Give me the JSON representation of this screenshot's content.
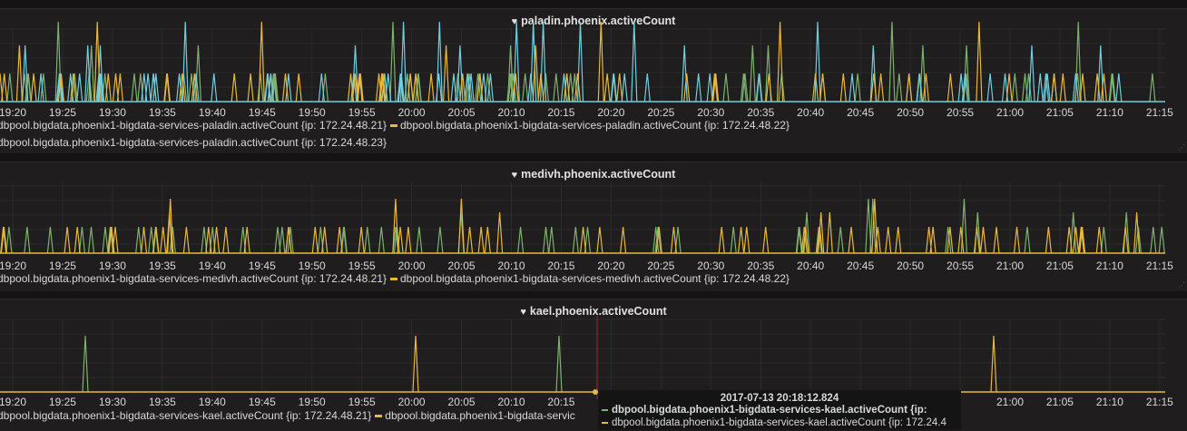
{
  "colors": {
    "green": "#7eb26d",
    "yellow": "#eab839",
    "blue": "#6ed0e0",
    "grid": "#2c2c2c",
    "crosshair": "#a0282a"
  },
  "time_labels": [
    "19:20",
    "19:25",
    "19:30",
    "19:35",
    "19:40",
    "19:45",
    "19:50",
    "19:55",
    "20:00",
    "20:05",
    "20:10",
    "20:15",
    "20:20",
    "20:25",
    "20:30",
    "20:35",
    "20:40",
    "20:45",
    "20:50",
    "20:55",
    "21:00",
    "21:05",
    "21:10",
    "21:15"
  ],
  "panels": [
    {
      "title": "paladin.phoenix.activeCount",
      "legend_rows": [
        [
          {
            "color": "#7eb26d",
            "label": "dbpool.bigdata.phoenix1-bigdata-services-paladin.activeCount {ip: 172.24.48.21}"
          },
          {
            "color": "#eab839",
            "label": "dbpool.bigdata.phoenix1-bigdata-services-paladin.activeCount {ip: 172.24.48.22}"
          }
        ],
        [
          {
            "color": "#6ed0e0",
            "label": "dbpool.bigdata.phoenix1-bigdata-services-paladin.activeCount {ip: 172.24.48.23}"
          }
        ]
      ]
    },
    {
      "title": "medivh.phoenix.activeCount",
      "legend_rows": [
        [
          {
            "color": "#7eb26d",
            "label": "dbpool.bigdata.phoenix1-bigdata-services-medivh.activeCount {ip: 172.24.48.21}"
          },
          {
            "color": "#eab839",
            "label": "dbpool.bigdata.phoenix1-bigdata-services-medivh.activeCount {ip: 172.24.48.22}"
          }
        ]
      ]
    },
    {
      "title": "kael.phoenix.activeCount",
      "legend_rows": [
        [
          {
            "color": "#7eb26d",
            "label": "dbpool.bigdata.phoenix1-bigdata-services-kael.activeCount {ip: 172.24.48.21}"
          },
          {
            "color": "#eab839",
            "label": "dbpool.bigdata.phoenix1-bigdata-servic"
          }
        ]
      ]
    }
  ],
  "tooltip": {
    "time": "2017-07-13 20:18:12.824",
    "items": [
      {
        "color": "#7eb26d",
        "label": "dbpool.bigdata.phoenix1-bigdata-services-kael.activeCount {ip:"
      },
      {
        "color": "#eab839",
        "label": "dbpool.bigdata.phoenix1-bigdata-services-kael.activeCount {ip: 172.24.4"
      }
    ]
  }
}
